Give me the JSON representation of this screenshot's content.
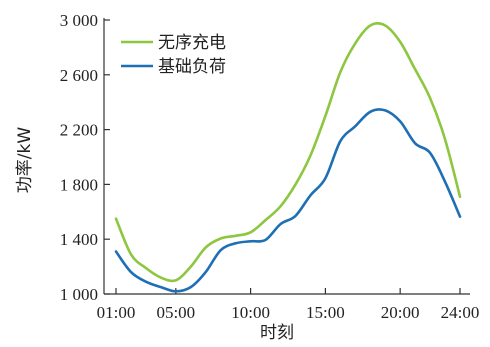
{
  "chart_data": {
    "type": "line",
    "title": "",
    "xlabel": "时刻",
    "ylabel": "功率/kW",
    "ylim": [
      1000,
      3000
    ],
    "xlim": [
      1,
      24
    ],
    "x_ticks": [
      {
        "x": 1,
        "label": "01:00"
      },
      {
        "x": 5,
        "label": "05:00"
      },
      {
        "x": 10,
        "label": "10:00"
      },
      {
        "x": 15,
        "label": "15:00"
      },
      {
        "x": 20,
        "label": "20:00"
      },
      {
        "x": 24,
        "label": "24:00"
      }
    ],
    "y_ticks": [
      {
        "y": 1000,
        "label": "1 000"
      },
      {
        "y": 1400,
        "label": "1 400"
      },
      {
        "y": 1800,
        "label": "1 800"
      },
      {
        "y": 2200,
        "label": "2 200"
      },
      {
        "y": 2600,
        "label": "2 600"
      },
      {
        "y": 3000,
        "label": "3 000"
      }
    ],
    "legend_position": "top-left",
    "grid": false,
    "series": [
      {
        "name": "无序充电",
        "color": "#8dc63f",
        "x": [
          1,
          2,
          3,
          4,
          5,
          6,
          7,
          8,
          9,
          10,
          11,
          12,
          13,
          14,
          15,
          16,
          17,
          18,
          19,
          20,
          21,
          22,
          23,
          24
        ],
        "values": [
          1550,
          1290,
          1190,
          1120,
          1100,
          1200,
          1340,
          1405,
          1425,
          1450,
          1540,
          1640,
          1800,
          2010,
          2300,
          2620,
          2830,
          2960,
          2960,
          2840,
          2640,
          2430,
          2130,
          1710
        ]
      },
      {
        "name": "基础负荷",
        "color": "#1f6fb5",
        "x": [
          1,
          2,
          3,
          4,
          5,
          6,
          7,
          8,
          9,
          10,
          11,
          12,
          13,
          14,
          15,
          16,
          17,
          18,
          19,
          20,
          21,
          22,
          23,
          24
        ],
        "values": [
          1310,
          1160,
          1090,
          1050,
          1020,
          1050,
          1160,
          1320,
          1370,
          1385,
          1395,
          1510,
          1570,
          1720,
          1845,
          2115,
          2225,
          2330,
          2340,
          2260,
          2100,
          2030,
          1820,
          1565
        ]
      }
    ]
  }
}
